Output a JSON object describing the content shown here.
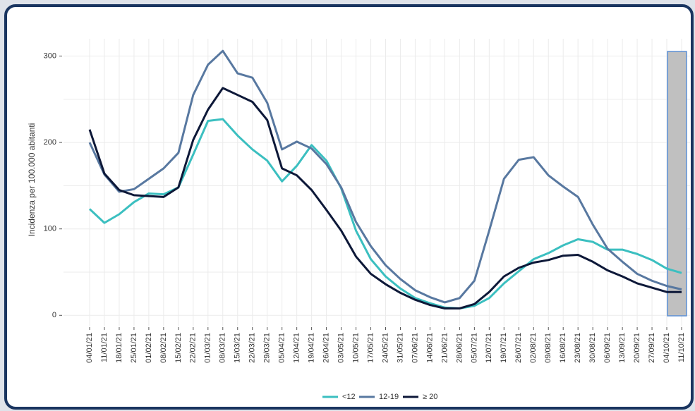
{
  "chart_data": {
    "type": "line",
    "y_label": "Incidenza per 100.000 abitanti",
    "categories": [
      "04/01/21",
      "11/01/21",
      "18/01/21",
      "25/01/21",
      "01/02/21",
      "08/02/21",
      "15/02/21",
      "22/02/21",
      "01/03/21",
      "08/03/21",
      "15/03/21",
      "22/03/21",
      "29/03/21",
      "05/04/21",
      "12/04/21",
      "19/04/21",
      "26/04/21",
      "03/05/21",
      "10/05/21",
      "17/05/21",
      "24/05/21",
      "31/05/21",
      "07/06/21",
      "14/06/21",
      "21/06/21",
      "28/06/21",
      "05/07/21",
      "12/07/21",
      "19/07/21",
      "26/07/21",
      "02/08/21",
      "09/08/21",
      "16/08/21",
      "23/08/21",
      "30/08/21",
      "06/09/21",
      "13/09/21",
      "20/09/21",
      "27/09/21",
      "04/10/21",
      "11/10/21"
    ],
    "series": [
      {
        "name": "<12",
        "color": "#3bbfc0",
        "values": [
          123,
          107,
          117,
          131,
          141,
          140,
          148,
          186,
          225,
          227,
          208,
          192,
          179,
          155,
          173,
          197,
          179,
          147,
          98,
          65,
          45,
          31,
          20,
          14,
          9,
          8,
          11,
          20,
          37,
          51,
          65,
          72,
          81,
          88,
          85,
          76,
          76,
          71,
          64,
          54,
          49
        ]
      },
      {
        "name": "12-19",
        "color": "#5878a0",
        "values": [
          200,
          163,
          143,
          146,
          158,
          170,
          188,
          255,
          290,
          306,
          280,
          275,
          246,
          192,
          201,
          193,
          175,
          148,
          108,
          80,
          58,
          42,
          29,
          21,
          15,
          20,
          40,
          98,
          158,
          180,
          183,
          162,
          149,
          137,
          105,
          77,
          62,
          48,
          40,
          34,
          30
        ]
      },
      {
        "name": "≥ 20",
        "color": "#0d1838",
        "values": [
          215,
          164,
          145,
          139,
          138,
          137,
          148,
          203,
          238,
          263,
          255,
          247,
          226,
          170,
          162,
          145,
          122,
          98,
          68,
          48,
          36,
          26,
          18,
          12,
          8,
          8,
          13,
          27,
          45,
          55,
          61,
          64,
          69,
          70,
          62,
          52,
          45,
          37,
          32,
          27,
          27
        ]
      }
    ],
    "ylim": [
      -12,
      320
    ],
    "yticks": [
      0,
      100,
      200,
      300
    ],
    "grid": true,
    "legend": "bottom"
  }
}
